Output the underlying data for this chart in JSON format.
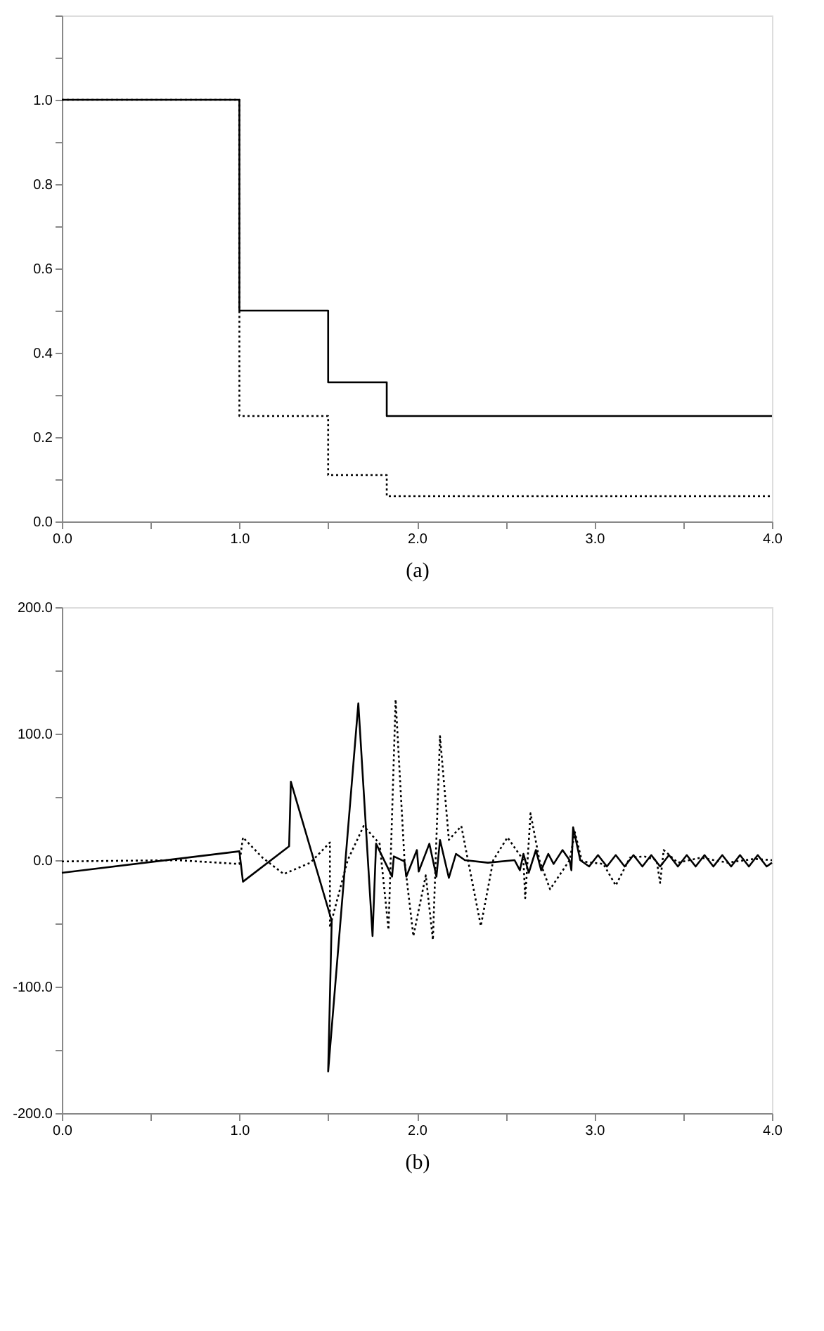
{
  "chart_data": [
    {
      "type": "step",
      "xlabel": "(a)",
      "xlim": [
        0,
        4
      ],
      "ylim": [
        0,
        1.2
      ],
      "grid": false,
      "xticks": [
        {
          "value": 0,
          "label": "0.0"
        },
        {
          "value": 0.5,
          "label": null
        },
        {
          "value": 1,
          "label": "1.0"
        },
        {
          "value": 1.5,
          "label": null
        },
        {
          "value": 2,
          "label": "2.0"
        },
        {
          "value": 2.5,
          "label": null
        },
        {
          "value": 3,
          "label": "3.0"
        },
        {
          "value": 3.5,
          "label": null
        },
        {
          "value": 4,
          "label": "4.0"
        }
      ],
      "yticks": [
        {
          "value": 0,
          "label": "0.0"
        },
        {
          "value": 0.1,
          "label": null
        },
        {
          "value": 0.2,
          "label": "0.2"
        },
        {
          "value": 0.3,
          "label": null
        },
        {
          "value": 0.4,
          "label": "0.4"
        },
        {
          "value": 0.5,
          "label": null
        },
        {
          "value": 0.6,
          "label": "0.6"
        },
        {
          "value": 0.7,
          "label": null
        },
        {
          "value": 0.8,
          "label": "0.8"
        },
        {
          "value": 0.9,
          "label": null
        },
        {
          "value": 1.0,
          "label": "1.0"
        },
        {
          "value": 1.1,
          "label": null
        },
        {
          "value": 1.2,
          "label": null
        }
      ],
      "series": [
        {
          "color": "#000000",
          "line_style": "solid",
          "x": [
            0,
            1,
            1.5,
            1.83,
            4
          ],
          "values": [
            1.0,
            0.5,
            0.33,
            0.25,
            0.25
          ]
        },
        {
          "color": "#000000",
          "line_style": "dotted",
          "x": [
            0,
            1,
            1.5,
            1.83,
            4
          ],
          "values": [
            1.0,
            0.25,
            0.11,
            0.06,
            0.06
          ]
        }
      ]
    },
    {
      "type": "line",
      "xlabel": "(b)",
      "xlim": [
        0,
        4
      ],
      "ylim": [
        -200,
        200
      ],
      "grid": false,
      "xticks": [
        {
          "value": 0,
          "label": "0.0"
        },
        {
          "value": 0.5,
          "label": null
        },
        {
          "value": 1,
          "label": "1.0"
        },
        {
          "value": 1.5,
          "label": null
        },
        {
          "value": 2,
          "label": "2.0"
        },
        {
          "value": 2.5,
          "label": null
        },
        {
          "value": 3,
          "label": "3.0"
        },
        {
          "value": 3.5,
          "label": null
        },
        {
          "value": 4,
          "label": "4.0"
        }
      ],
      "yticks": [
        {
          "value": -200,
          "label": "-200.0"
        },
        {
          "value": -150,
          "label": null
        },
        {
          "value": -100,
          "label": "-100.0"
        },
        {
          "value": -50,
          "label": null
        },
        {
          "value": 0,
          "label": "0.0"
        },
        {
          "value": 50,
          "label": null
        },
        {
          "value": 100,
          "label": "100.0"
        },
        {
          "value": 150,
          "label": null
        },
        {
          "value": 200,
          "label": "200.0"
        }
      ],
      "series": [
        {
          "color": "#000000",
          "line_style": "solid",
          "x": [
            0,
            1.0,
            1.02,
            1.28,
            1.29,
            1.52,
            1.5,
            1.67,
            1.75,
            1.77,
            1.86,
            1.87,
            1.93,
            1.94,
            2.0,
            2.01,
            2.07,
            2.11,
            2.13,
            2.18,
            2.22,
            2.27,
            2.4,
            2.55,
            2.58,
            2.6,
            2.63,
            2.67,
            2.7,
            2.74,
            2.77,
            2.82,
            2.86,
            2.87,
            2.88,
            2.92,
            2.97,
            3.02,
            3.07,
            3.12,
            3.17,
            3.22,
            3.27,
            3.32,
            3.37,
            3.42,
            3.47,
            3.52,
            3.57,
            3.62,
            3.67,
            3.72,
            3.77,
            3.82,
            3.87,
            3.92,
            3.97,
            4.0
          ],
          "values": [
            -10,
            7,
            -17,
            11,
            62,
            -48,
            -167,
            124,
            -60,
            13,
            -13,
            3,
            -1,
            -13,
            8,
            -9,
            13,
            -13,
            16,
            -14,
            5,
            0,
            -2,
            0,
            -8,
            5,
            -10,
            8,
            -8,
            5,
            -3,
            8,
            0,
            -8,
            26,
            0,
            -5,
            4,
            -5,
            4,
            -5,
            4,
            -5,
            4,
            -5,
            4,
            -5,
            4,
            -5,
            4,
            -5,
            4,
            -5,
            4,
            -5,
            4,
            -5,
            -2
          ]
        },
        {
          "color": "#000000",
          "line_style": "dotted",
          "x": [
            0,
            0.65,
            1.0,
            1.02,
            1.13,
            1.25,
            1.4,
            1.51,
            1.51,
            1.61,
            1.7,
            1.79,
            1.84,
            1.88,
            1.93,
            1.98,
            2.05,
            2.09,
            2.13,
            2.18,
            2.25,
            2.36,
            2.43,
            2.51,
            2.6,
            2.61,
            2.64,
            2.69,
            2.75,
            2.86,
            2.89,
            2.93,
            3.05,
            3.12,
            3.2,
            3.28,
            3.35,
            3.37,
            3.39,
            3.47,
            3.6,
            3.75,
            3.9,
            4.0
          ],
          "values": [
            -1,
            0,
            -3,
            18,
            2,
            -11,
            -2,
            14,
            -53,
            0,
            27,
            13,
            -55,
            127,
            0,
            -60,
            -12,
            -63,
            98,
            16,
            27,
            -52,
            0,
            18,
            0,
            -30,
            37,
            0,
            -23,
            0,
            22,
            -1,
            -3,
            -20,
            2,
            3,
            0,
            -18,
            8,
            -2,
            2,
            -2,
            1,
            0
          ]
        }
      ]
    }
  ]
}
